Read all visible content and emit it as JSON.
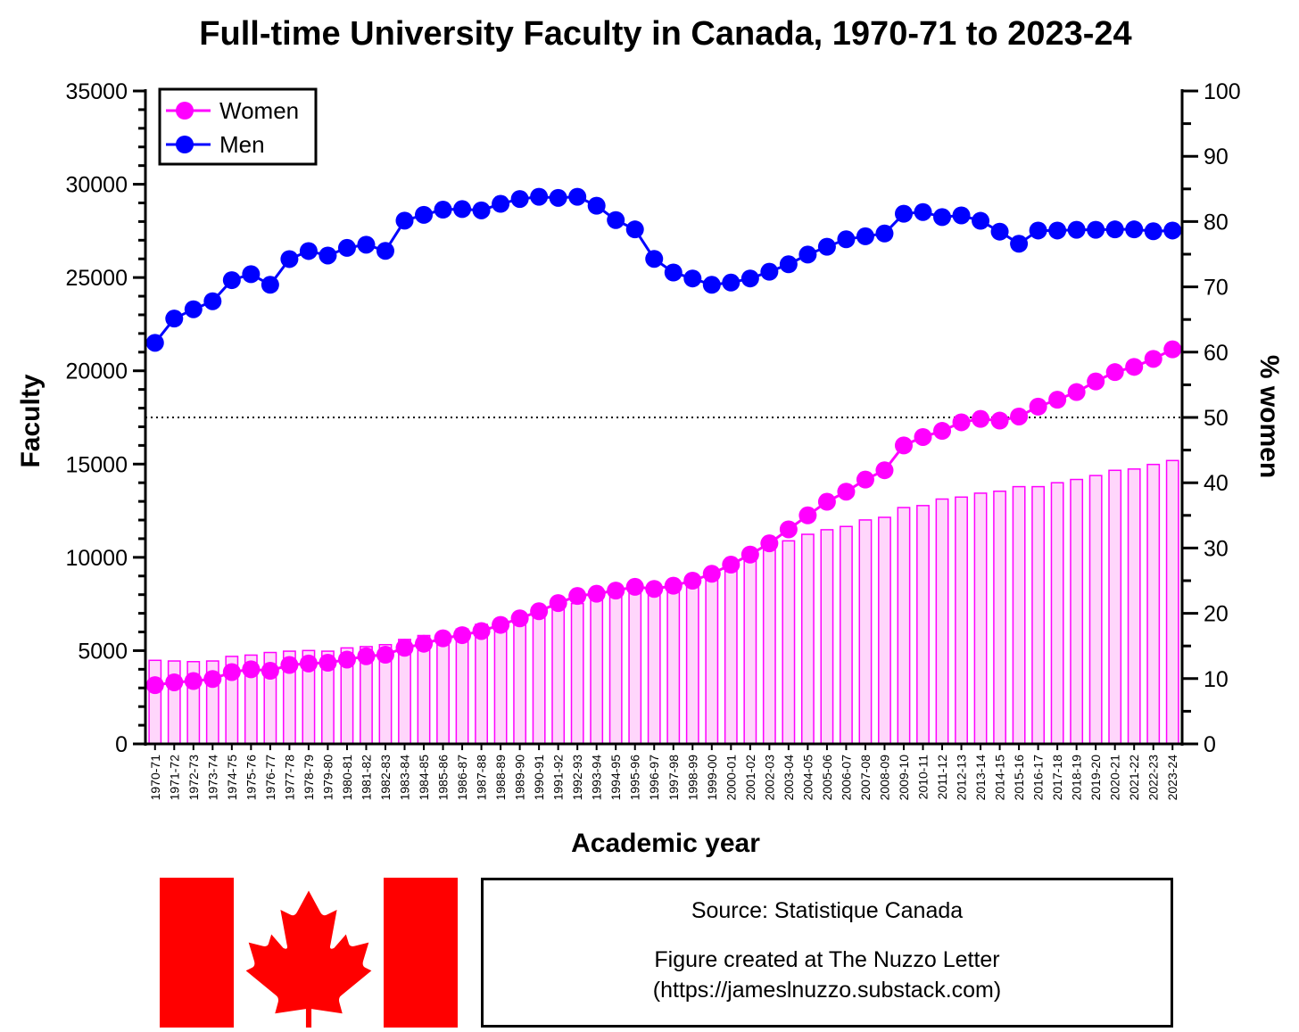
{
  "chart_data": {
    "type": "bar+line",
    "title": "Full-time University Faculty in Canada, 1970-71 to 2023-24",
    "xlabel": "Academic year",
    "ylabel_left": "Faculty",
    "ylabel_right": "% women",
    "ylim_left": [
      0,
      35000
    ],
    "ylim_right": [
      0,
      100
    ],
    "yticks_left": [
      "0",
      "5000",
      "10000",
      "15000",
      "20000",
      "25000",
      "30000",
      "35000"
    ],
    "yticks_right": [
      "0",
      "10",
      "20",
      "30",
      "40",
      "50",
      "60",
      "70",
      "80",
      "90",
      "100"
    ],
    "reference_line_right": 50,
    "legend_position": "top-left",
    "categories": [
      "1970-71",
      "1971-72",
      "1972-73",
      "1973-74",
      "1974-75",
      "1975-76",
      "1976-77",
      "1977-78",
      "1978-79",
      "1979-80",
      "1980-81",
      "1981-82",
      "1982-83",
      "1983-84",
      "1984-85",
      "1985-86",
      "1986-87",
      "1987-88",
      "1988-89",
      "1989-90",
      "1990-91",
      "1991-92",
      "1992-93",
      "1993-94",
      "1994-95",
      "1995-96",
      "1996-97",
      "1997-98",
      "1998-99",
      "1999-00",
      "2000-01",
      "2001-02",
      "2002-03",
      "2003-04",
      "2004-05",
      "2005-06",
      "2006-07",
      "2007-08",
      "2008-09",
      "2009-10",
      "2010-11",
      "2011-12",
      "2012-13",
      "2013-14",
      "2014-15",
      "2015-16",
      "2016-17",
      "2017-18",
      "2018-19",
      "2019-20",
      "2020-21",
      "2021-22",
      "2022-23",
      "2023-24"
    ],
    "bars": {
      "axis": "right",
      "color": "#ff00ff",
      "fill": "#ffd6fb",
      "values": [
        12.8,
        12.7,
        12.6,
        12.7,
        13.4,
        13.6,
        14.0,
        14.2,
        14.3,
        14.2,
        14.7,
        14.9,
        15.2,
        16.0,
        16.6,
        17.0,
        17.6,
        18.3,
        19.1,
        20.0,
        20.5,
        20.8,
        21.5,
        22.4,
        23.2,
        23.6,
        23.7,
        24.0,
        25.0,
        25.7,
        26.9,
        28.9,
        30.8,
        31.1,
        32.1,
        32.8,
        33.3,
        34.3,
        34.7,
        36.2,
        36.5,
        37.5,
        37.8,
        38.4,
        38.7,
        39.4,
        39.4,
        40.0,
        40.5,
        41.1,
        41.9,
        42.1,
        42.8,
        43.4
      ]
    },
    "series": [
      {
        "name": "Women",
        "axis": "left",
        "color": "#ff00ff",
        "values": [
          3150,
          3300,
          3370,
          3480,
          3850,
          4000,
          3920,
          4230,
          4310,
          4350,
          4520,
          4700,
          4780,
          5150,
          5370,
          5660,
          5830,
          6050,
          6380,
          6730,
          7110,
          7550,
          7930,
          8050,
          8220,
          8420,
          8310,
          8480,
          8750,
          9120,
          9610,
          10150,
          10750,
          11500,
          12250,
          12980,
          13520,
          14170,
          14670,
          16000,
          16450,
          16780,
          17240,
          17420,
          17330,
          17550,
          18080,
          18450,
          18860,
          19430,
          19930,
          20210,
          20640,
          21150
        ]
      },
      {
        "name": "Men",
        "axis": "left",
        "color": "#0000ff",
        "values": [
          21500,
          22800,
          23300,
          23730,
          24860,
          25180,
          24610,
          25990,
          26420,
          26180,
          26590,
          26760,
          26430,
          28050,
          28360,
          28640,
          28670,
          28600,
          28950,
          29210,
          29330,
          29270,
          29330,
          28850,
          28080,
          27580,
          26000,
          25270,
          24950,
          24610,
          24730,
          24950,
          25310,
          25710,
          26230,
          26650,
          27050,
          27210,
          27360,
          28420,
          28510,
          28240,
          28330,
          28040,
          27460,
          26810,
          27520,
          27520,
          27560,
          27560,
          27580,
          27580,
          27480,
          27520
        ]
      }
    ]
  },
  "source_box": {
    "source": "Source: Statistique Canada",
    "credit_line1": "Figure created at The Nuzzo Letter",
    "credit_line2": "(https://jameslnuzzo.substack.com)"
  },
  "colors": {
    "flag_red": "#ff0000",
    "women": "#ff00ff",
    "men": "#0000ff",
    "bar_fill": "#ffd6fb"
  }
}
